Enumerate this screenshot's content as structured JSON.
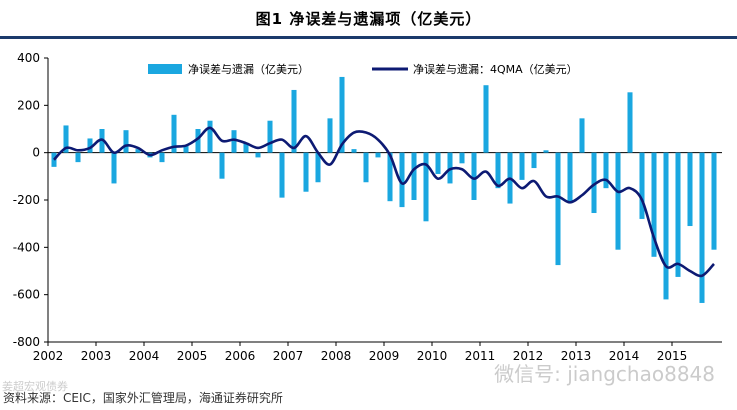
{
  "title": "图1   净误差与遗漏项（亿美元）",
  "source": "资料来源：CEIC，国家外汇管理局，海通证券研究所",
  "watermark": "微信号: jiangchao8848",
  "watermark_left": "姜超宏观债券",
  "colors": {
    "bar": "#1aa7e0",
    "line": "#0d1a73",
    "title_rule": "#1b3a6b"
  },
  "chart_data": {
    "type": "bar",
    "xlabel": "",
    "ylabel": "",
    "ylim": [
      -800,
      400
    ],
    "yticks": [
      -800,
      -600,
      -400,
      -200,
      0,
      200,
      400
    ],
    "xtick_labels": [
      "2002",
      "2003",
      "2004",
      "2005",
      "2006",
      "2007",
      "2008",
      "2009",
      "2010",
      "2011",
      "2012",
      "2013",
      "2014",
      "2015"
    ],
    "grid": false,
    "legend_position": "top",
    "x_start_year": 2002,
    "quarters": [
      "2002Q1",
      "2002Q2",
      "2002Q3",
      "2002Q4",
      "2003Q1",
      "2003Q2",
      "2003Q3",
      "2003Q4",
      "2004Q1",
      "2004Q2",
      "2004Q3",
      "2004Q4",
      "2005Q1",
      "2005Q2",
      "2005Q3",
      "2005Q4",
      "2006Q1",
      "2006Q2",
      "2006Q3",
      "2006Q4",
      "2007Q1",
      "2007Q2",
      "2007Q3",
      "2007Q4",
      "2008Q1",
      "2008Q2",
      "2008Q3",
      "2008Q4",
      "2009Q1",
      "2009Q2",
      "2009Q3",
      "2009Q4",
      "2010Q1",
      "2010Q2",
      "2010Q3",
      "2010Q4",
      "2011Q1",
      "2011Q2",
      "2011Q3",
      "2011Q4",
      "2012Q1",
      "2012Q2",
      "2012Q3",
      "2012Q4",
      "2013Q1",
      "2013Q2",
      "2013Q3",
      "2013Q4",
      "2014Q1",
      "2014Q2",
      "2014Q3",
      "2014Q4",
      "2015Q1",
      "2015Q2",
      "2015Q3",
      "2015Q4"
    ],
    "series": [
      {
        "name": "净误差与遗漏（亿美元）",
        "type": "bar",
        "values": [
          -60,
          115,
          -40,
          60,
          100,
          -130,
          95,
          15,
          -20,
          -40,
          160,
          30,
          100,
          135,
          -110,
          95,
          40,
          -20,
          135,
          -190,
          265,
          -165,
          -125,
          145,
          320,
          15,
          -125,
          -20,
          -205,
          -230,
          -200,
          -290,
          -90,
          -130,
          -45,
          -200,
          285,
          -150,
          -215,
          -115,
          -65,
          10,
          -475,
          -210,
          145,
          -255,
          -150,
          -410,
          255,
          -280,
          -440,
          -620,
          -525,
          -310,
          -635,
          -410
        ]
      },
      {
        "name": "净误差与遗漏：4QMA（亿美元）",
        "type": "line",
        "values": [
          -30,
          20,
          10,
          20,
          55,
          0,
          30,
          20,
          -10,
          10,
          25,
          30,
          60,
          105,
          50,
          55,
          40,
          20,
          40,
          55,
          20,
          70,
          0,
          -50,
          35,
          85,
          85,
          55,
          -10,
          -130,
          -70,
          -50,
          -110,
          -70,
          -70,
          -110,
          -80,
          -140,
          -110,
          -150,
          -120,
          -185,
          -185,
          -210,
          -180,
          -135,
          -115,
          -165,
          -150,
          -200,
          -360,
          -480,
          -470,
          -500,
          -520,
          -470
        ]
      }
    ]
  }
}
